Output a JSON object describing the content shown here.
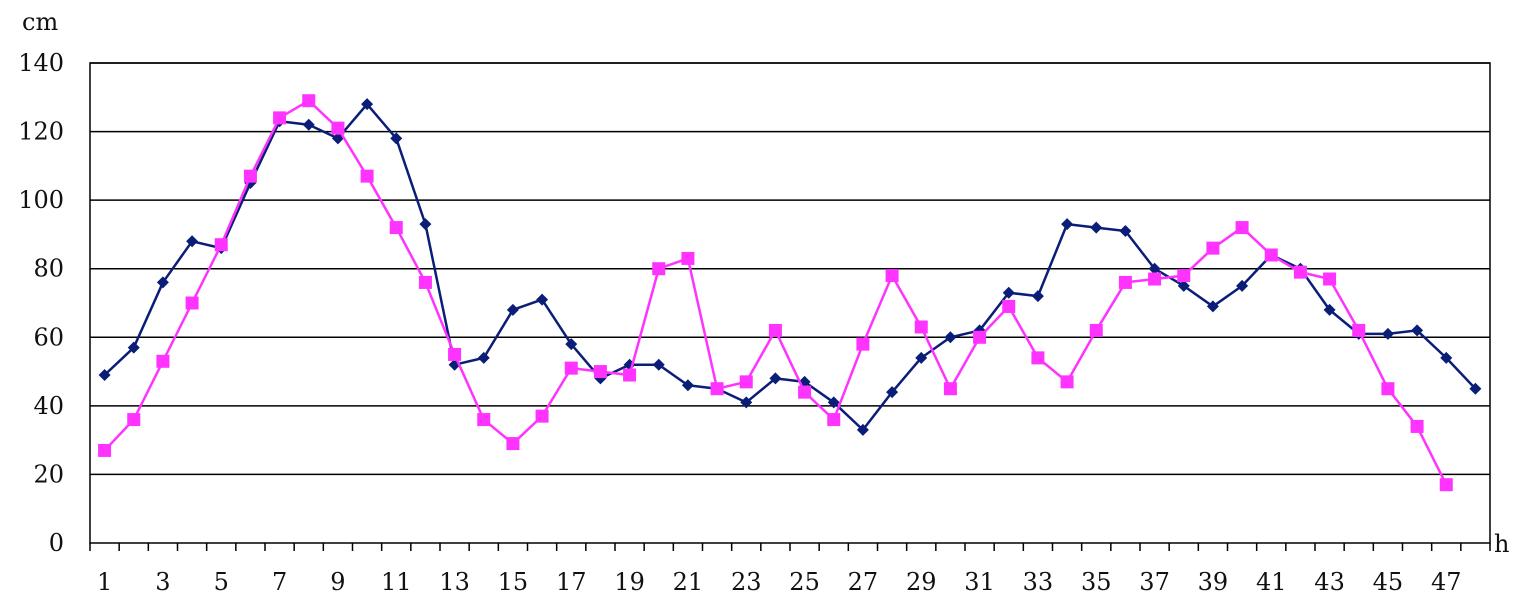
{
  "chart_data": {
    "type": "line",
    "title": "",
    "ylabel": "cm",
    "xlabel": "h",
    "ylim": [
      0,
      140
    ],
    "yticks": [
      0,
      20,
      40,
      60,
      80,
      100,
      120,
      140
    ],
    "x": [
      1,
      2,
      3,
      4,
      5,
      6,
      7,
      8,
      9,
      10,
      11,
      12,
      13,
      14,
      15,
      16,
      17,
      18,
      19,
      20,
      21,
      22,
      23,
      24,
      25,
      26,
      27,
      28,
      29,
      30,
      31,
      32,
      33,
      34,
      35,
      36,
      37,
      38,
      39,
      40,
      41,
      42,
      43,
      44,
      45,
      46,
      47,
      48
    ],
    "xtick_labels": [
      1,
      3,
      5,
      7,
      9,
      11,
      13,
      15,
      17,
      19,
      21,
      23,
      25,
      27,
      29,
      31,
      33,
      35,
      37,
      39,
      41,
      43,
      45,
      47
    ],
    "grid": true,
    "legend": "none",
    "series": [
      {
        "marker": "diamond",
        "color": "#0a1e78",
        "x": [
          1,
          2,
          3,
          4,
          5,
          6,
          7,
          8,
          9,
          10,
          11,
          12,
          13,
          14,
          15,
          16,
          17,
          18,
          19,
          20,
          21,
          22,
          23,
          24,
          25,
          26,
          27,
          28,
          29,
          30,
          31,
          32,
          33,
          34,
          35,
          36,
          37,
          38,
          39,
          40,
          41,
          42,
          43,
          44,
          45,
          46,
          47,
          48
        ],
        "values": [
          49,
          57,
          76,
          88,
          86,
          105,
          123,
          122,
          118,
          128,
          118,
          93,
          52,
          54,
          68,
          71,
          58,
          48,
          52,
          52,
          46,
          45,
          41,
          48,
          47,
          41,
          33,
          44,
          54,
          60,
          62,
          73,
          72,
          93,
          92,
          91,
          80,
          75,
          69,
          75,
          84,
          80,
          68,
          61,
          61,
          62,
          54,
          45
        ]
      },
      {
        "marker": "square",
        "color": "#ff33ff",
        "x": [
          1,
          2,
          3,
          4,
          5,
          6,
          7,
          8,
          9,
          10,
          11,
          12,
          13,
          14,
          15,
          16,
          17,
          18,
          19,
          20,
          21,
          22,
          23,
          24,
          25,
          26,
          27,
          28,
          29,
          30,
          31,
          32,
          33,
          34,
          35,
          36,
          37,
          38,
          39,
          40,
          41,
          42,
          43,
          44,
          45,
          46,
          47
        ],
        "values": [
          27,
          36,
          53,
          70,
          87,
          107,
          124,
          129,
          121,
          107,
          92,
          76,
          55,
          36,
          29,
          37,
          51,
          50,
          49,
          80,
          83,
          45,
          47,
          62,
          44,
          36,
          58,
          78,
          63,
          45,
          60,
          69,
          54,
          47,
          62,
          76,
          77,
          78,
          86,
          92,
          84,
          79,
          77,
          62,
          45,
          34,
          17
        ]
      }
    ]
  }
}
